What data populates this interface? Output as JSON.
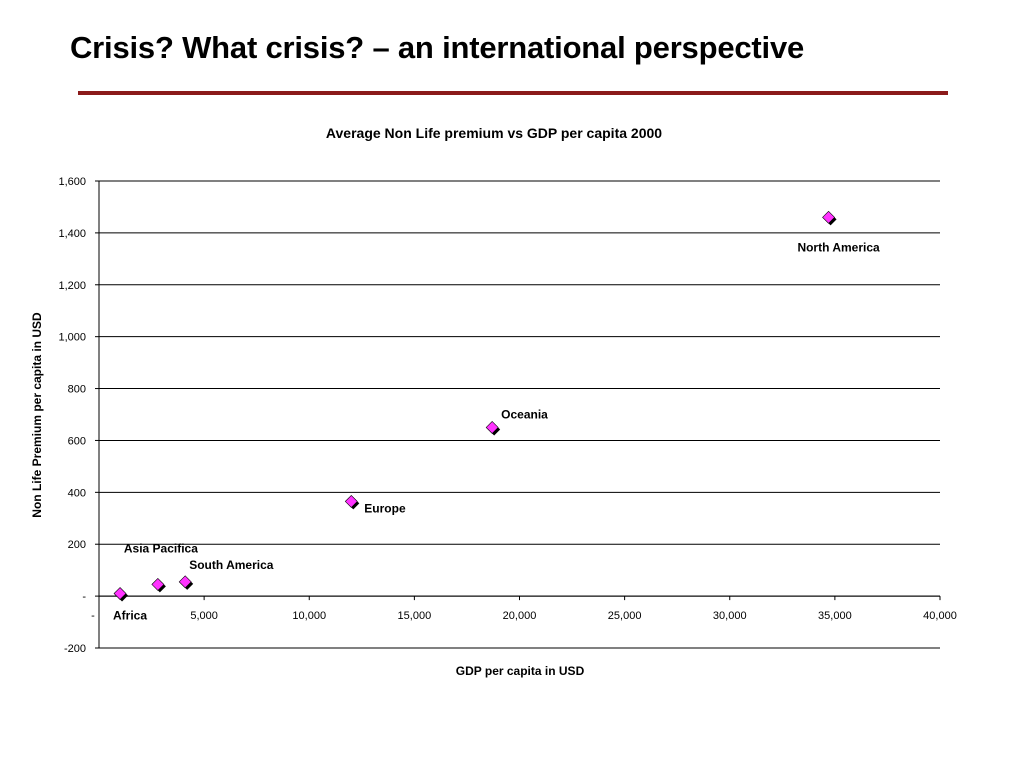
{
  "slide": {
    "title": "Crisis? What crisis? – an international perspective",
    "rule_color": "#8B1A1A"
  },
  "chart_data": {
    "type": "scatter",
    "title": "Average Non Life premium vs GDP per capita 2000",
    "xlabel": "GDP per capita in USD",
    "ylabel": "Non Life Premium per capita in USD",
    "xlim": [
      0,
      40000
    ],
    "ylim": [
      -200,
      1600
    ],
    "x_ticks": [
      0,
      5000,
      10000,
      15000,
      20000,
      25000,
      30000,
      35000,
      40000
    ],
    "x_tick_labels": [
      "-",
      "5,000",
      "10,000",
      "15,000",
      "20,000",
      "25,000",
      "30,000",
      "35,000",
      "40,000"
    ],
    "y_ticks": [
      -200,
      0,
      200,
      400,
      600,
      800,
      1000,
      1200,
      1400,
      1600
    ],
    "y_tick_labels": [
      "-200",
      "-",
      "200",
      "400",
      "600",
      "800",
      "1,000",
      "1,200",
      "1,400",
      "1,600"
    ],
    "grid": "horizontal",
    "marker": "diamond",
    "marker_color": "#FF33FF",
    "marker_shadow_color": "#000000",
    "points": [
      {
        "label": "Africa",
        "x": 1000,
        "y": 10
      },
      {
        "label": "Asia Pacifica",
        "x": 2800,
        "y": 45
      },
      {
        "label": "South America",
        "x": 4100,
        "y": 55
      },
      {
        "label": "Europe",
        "x": 12000,
        "y": 365
      },
      {
        "label": "Oceania",
        "x": 18700,
        "y": 650
      },
      {
        "label": "North America",
        "x": 34700,
        "y": 1460
      }
    ]
  }
}
